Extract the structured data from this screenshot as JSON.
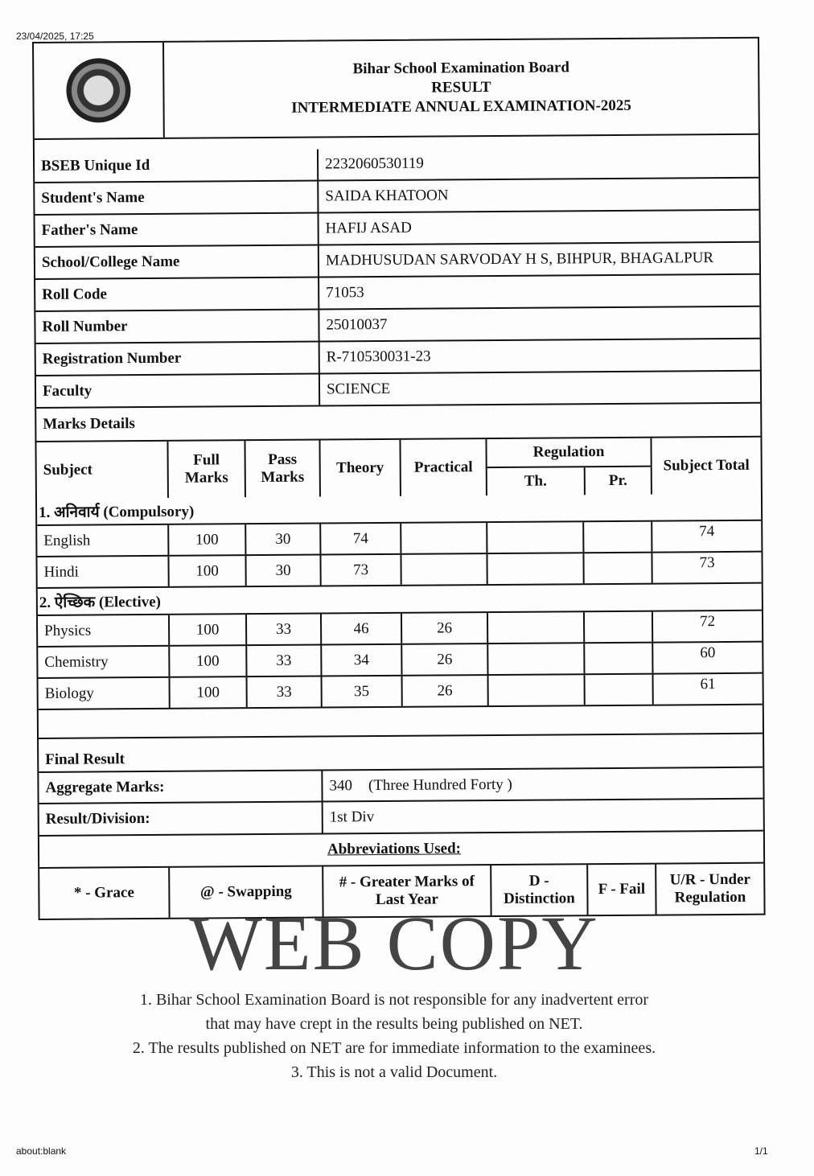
{
  "print_header": {
    "timestamp": "23/04/2025, 17:25"
  },
  "print_footer": {
    "url": "about:blank",
    "page": "1/1"
  },
  "header": {
    "board": "Bihar School Examination Board",
    "result": "RESULT",
    "exam": "INTERMEDIATE ANNUAL EXAMINATION-2025"
  },
  "details": [
    {
      "label": "BSEB Unique Id",
      "value": "2232060530119"
    },
    {
      "label": "Student's Name",
      "value": "SAIDA KHATOON"
    },
    {
      "label": "Father's Name",
      "value": "HAFIJ ASAD"
    },
    {
      "label": "School/College Name",
      "value": "MADHUSUDAN SARVODAY H S, BIHPUR, BHAGALPUR"
    },
    {
      "label": "Roll Code",
      "value": "71053"
    },
    {
      "label": "Roll Number",
      "value": "25010037"
    },
    {
      "label": "Registration Number",
      "value": "R-710530031-23"
    },
    {
      "label": "Faculty",
      "value": "SCIENCE"
    }
  ],
  "marks": {
    "title": "Marks Details",
    "columns": {
      "subject": "Subject",
      "full": "Full Marks",
      "pass": "Pass Marks",
      "theory": "Theory",
      "practical": "Practical",
      "regulation": "Regulation",
      "reg_th": "Th.",
      "reg_pr": "Pr.",
      "total": "Subject Total"
    },
    "groups": [
      {
        "label": "1. अनिवार्य (Compulsory)",
        "subjects": [
          {
            "name": "English",
            "full": "100",
            "pass": "30",
            "theory": "74",
            "practical": "",
            "reg_th": "",
            "reg_pr": "",
            "total": "74"
          },
          {
            "name": "Hindi",
            "full": "100",
            "pass": "30",
            "theory": "73",
            "practical": "",
            "reg_th": "",
            "reg_pr": "",
            "total": "73"
          }
        ]
      },
      {
        "label": "2. ऐच्छिक (Elective)",
        "subjects": [
          {
            "name": "Physics",
            "full": "100",
            "pass": "33",
            "theory": "46",
            "practical": "26",
            "reg_th": "",
            "reg_pr": "",
            "total": "72"
          },
          {
            "name": "Chemistry",
            "full": "100",
            "pass": "33",
            "theory": "34",
            "practical": "26",
            "reg_th": "",
            "reg_pr": "",
            "total": "60"
          },
          {
            "name": "Biology",
            "full": "100",
            "pass": "33",
            "theory": "35",
            "practical": "26",
            "reg_th": "",
            "reg_pr": "",
            "total": "61"
          }
        ]
      }
    ]
  },
  "final": {
    "title": "Final Result",
    "aggregate_label": "Aggregate Marks:",
    "aggregate_value": "340",
    "aggregate_words": "(Three Hundred Forty )",
    "division_label": "Result/Division:",
    "division_value": "1st Div"
  },
  "abbreviations": {
    "title": "Abbreviations Used:",
    "items": [
      "* - Grace",
      "@ - Swapping",
      "# - Greater Marks of Last Year",
      "D - Distinction",
      "F - Fail",
      "U/R - Under Regulation"
    ]
  },
  "watermark": {
    "stamp": "WEB COPY",
    "notes": [
      "1. Bihar School Examination Board is not responsible for any inadvertent error",
      "that may have crept in the results being published on NET.",
      "2. The results published on NET are for immediate information to the examinees.",
      "3. This is not a valid Document."
    ]
  }
}
